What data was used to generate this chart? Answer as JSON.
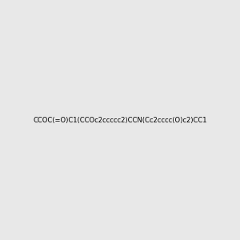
{
  "smiles": "CCOC(=O)C1(CCOc2ccccc2)CCN(Cc2cccc(O)c2)CC1",
  "image_size": 300,
  "background_color": "#e8e8e8",
  "atom_colors": {
    "O": "#ff0000",
    "N": "#0000ff",
    "H_on_O": "#008080"
  }
}
